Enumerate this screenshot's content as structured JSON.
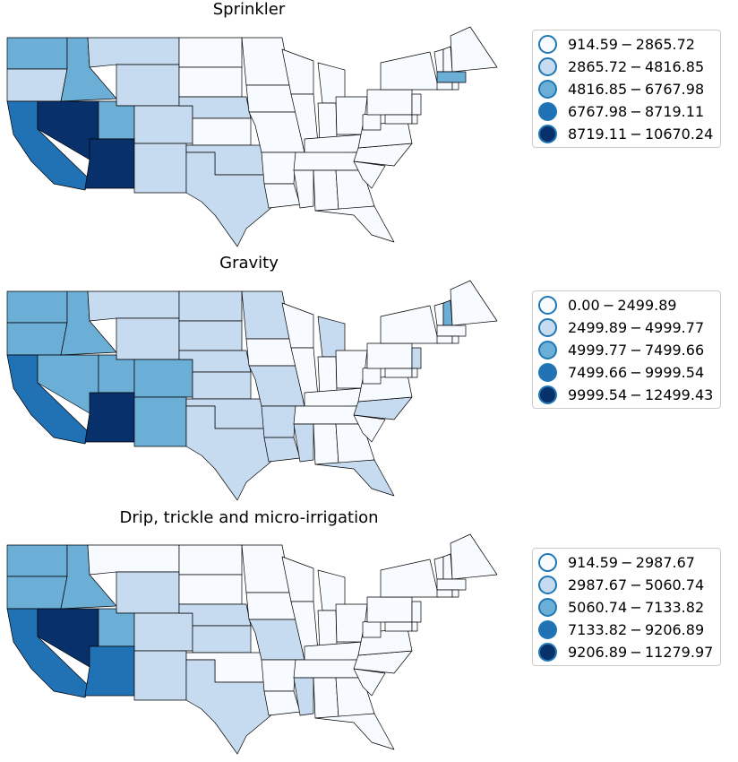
{
  "palette": [
    "#f7fbff",
    "#c6dbef",
    "#6baed6",
    "#2171b5",
    "#08306b"
  ],
  "outline_color": "#1f77b4",
  "panels": [
    {
      "title": "Sprinkler",
      "legend": [
        "914.59 − 2865.72",
        "2865.72 − 4816.85",
        "4816.85 − 6767.98",
        "6767.98 − 8719.11",
        "8719.11 − 10670.24"
      ]
    },
    {
      "title": "Gravity",
      "legend": [
        "0.00 − 2499.89",
        "2499.89 − 4999.77",
        "4999.77 − 7499.66",
        "7499.66 − 9999.54",
        "9999.54 − 12499.43"
      ]
    },
    {
      "title": "Drip, trickle and micro-irrigation",
      "legend": [
        "914.59 − 2987.67",
        "2987.67 − 5060.74",
        "5060.74 − 7133.82",
        "7133.82 − 9206.89",
        "9206.89 − 11279.97"
      ]
    }
  ]
}
